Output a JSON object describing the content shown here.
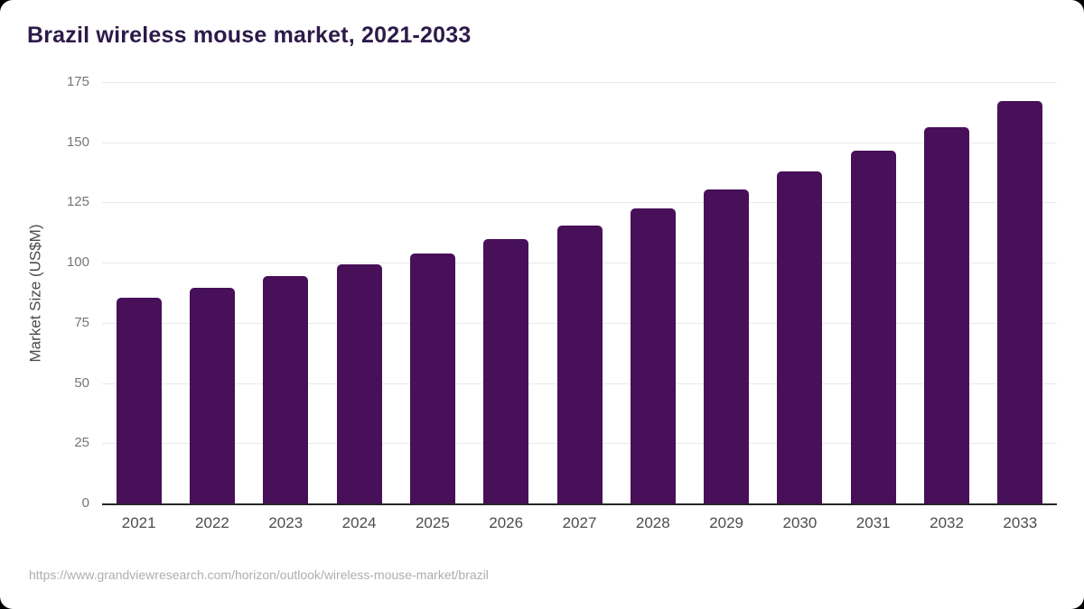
{
  "header": {
    "title": "Brazil wireless mouse market, 2021-2033"
  },
  "footer": {
    "source_url": "https://www.grandviewresearch.com/horizon/outlook/wireless-mouse-market/brazil"
  },
  "colors": {
    "background": "#ffffff",
    "outside": "#000000",
    "bar": "#471059",
    "title": "#2c1a4a",
    "gridline": "#e9e9e9",
    "axis_line": "#262626",
    "tick_label": "#757575",
    "x_label": "#4d4d4d",
    "axis_title": "#4a4a4a",
    "source": "#aeaeae"
  },
  "chart_data": {
    "type": "bar",
    "title": "Brazil wireless mouse market, 2021-2033",
    "categories": [
      "2021",
      "2022",
      "2023",
      "2024",
      "2025",
      "2026",
      "2027",
      "2028",
      "2029",
      "2030",
      "2031",
      "2032",
      "2033"
    ],
    "values": [
      85.4,
      89.6,
      94.3,
      99.2,
      103.9,
      109.7,
      115.4,
      122.5,
      130.3,
      137.9,
      146.5,
      156.1,
      167.3
    ],
    "xlabel": "",
    "ylabel": "Market Size (US$M)",
    "ylim": [
      0,
      175
    ],
    "yticks": [
      0,
      25,
      50,
      75,
      100,
      125,
      150,
      175
    ],
    "grid": true,
    "legend": false,
    "legend_position": "none"
  }
}
